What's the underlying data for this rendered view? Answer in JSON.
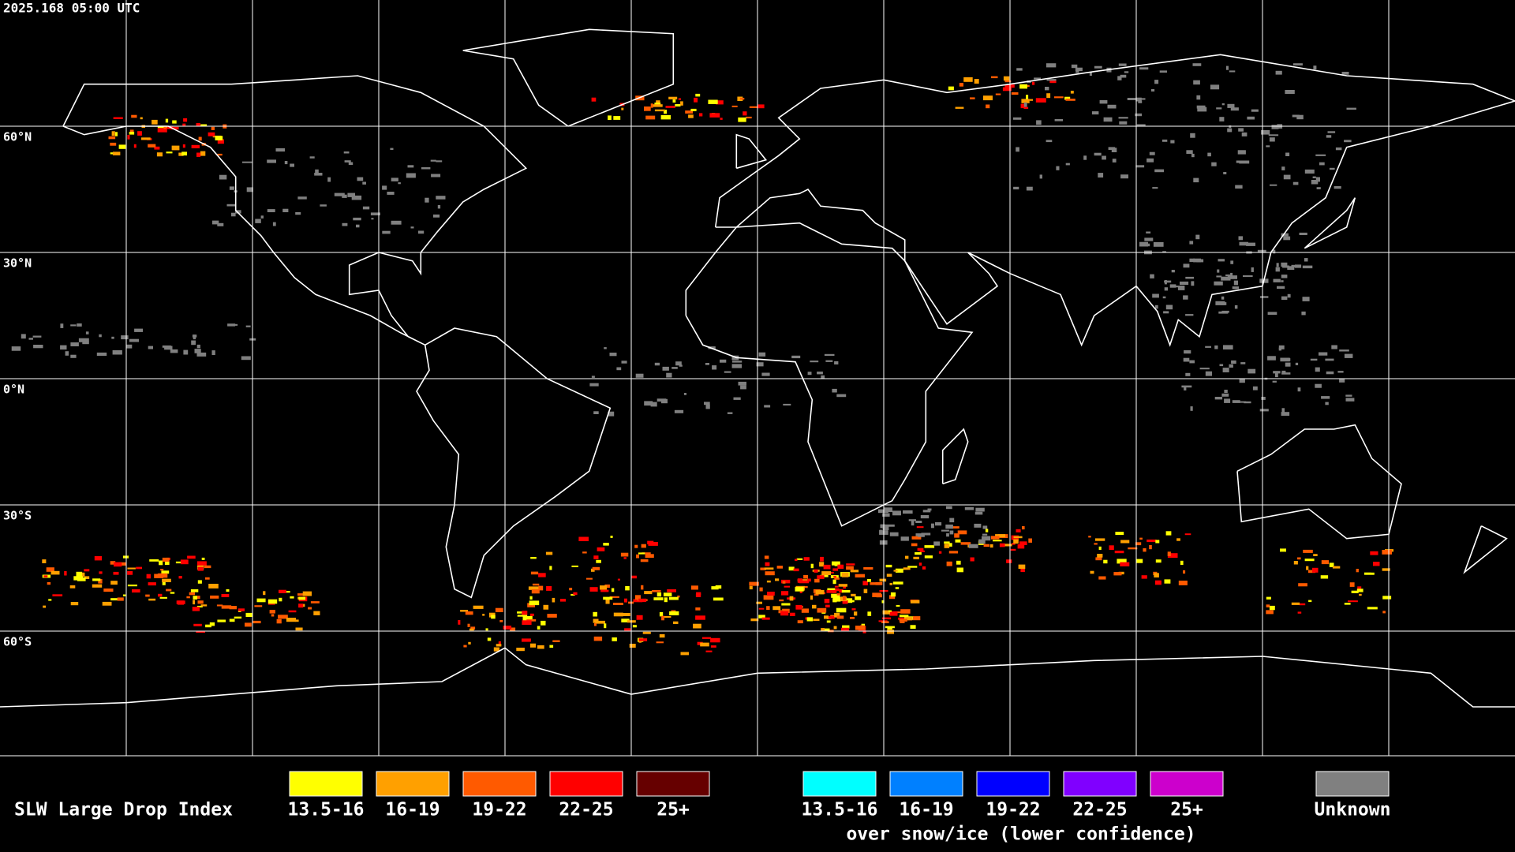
{
  "header": {
    "timestamp": "2025.168 05:00 UTC"
  },
  "map": {
    "latitude_labels": [
      "60°N",
      "30°N",
      "0°N",
      "30°S",
      "60°S"
    ]
  },
  "legend": {
    "title": "SLW Large Drop Index",
    "groups": [
      {
        "items": [
          {
            "label": "13.5-16",
            "color": "#ffff00"
          },
          {
            "label": "16-19",
            "color": "#ffa000"
          },
          {
            "label": "19-22",
            "color": "#ff5a00"
          },
          {
            "label": "22-25",
            "color": "#ff0000"
          },
          {
            "label": "25+",
            "color": "#660000"
          }
        ]
      },
      {
        "items": [
          {
            "label": "13.5-16",
            "color": "#00ffff"
          },
          {
            "label": "16-19",
            "color": "#0080ff"
          },
          {
            "label": "19-22",
            "color": "#0000ff"
          },
          {
            "label": "22-25",
            "color": "#8000ff"
          },
          {
            "label": "25+",
            "color": "#cc00cc"
          }
        ],
        "caption": "over snow/ice (lower confidence)"
      }
    ],
    "unknown": {
      "label": "Unknown",
      "color": "#808080"
    }
  }
}
